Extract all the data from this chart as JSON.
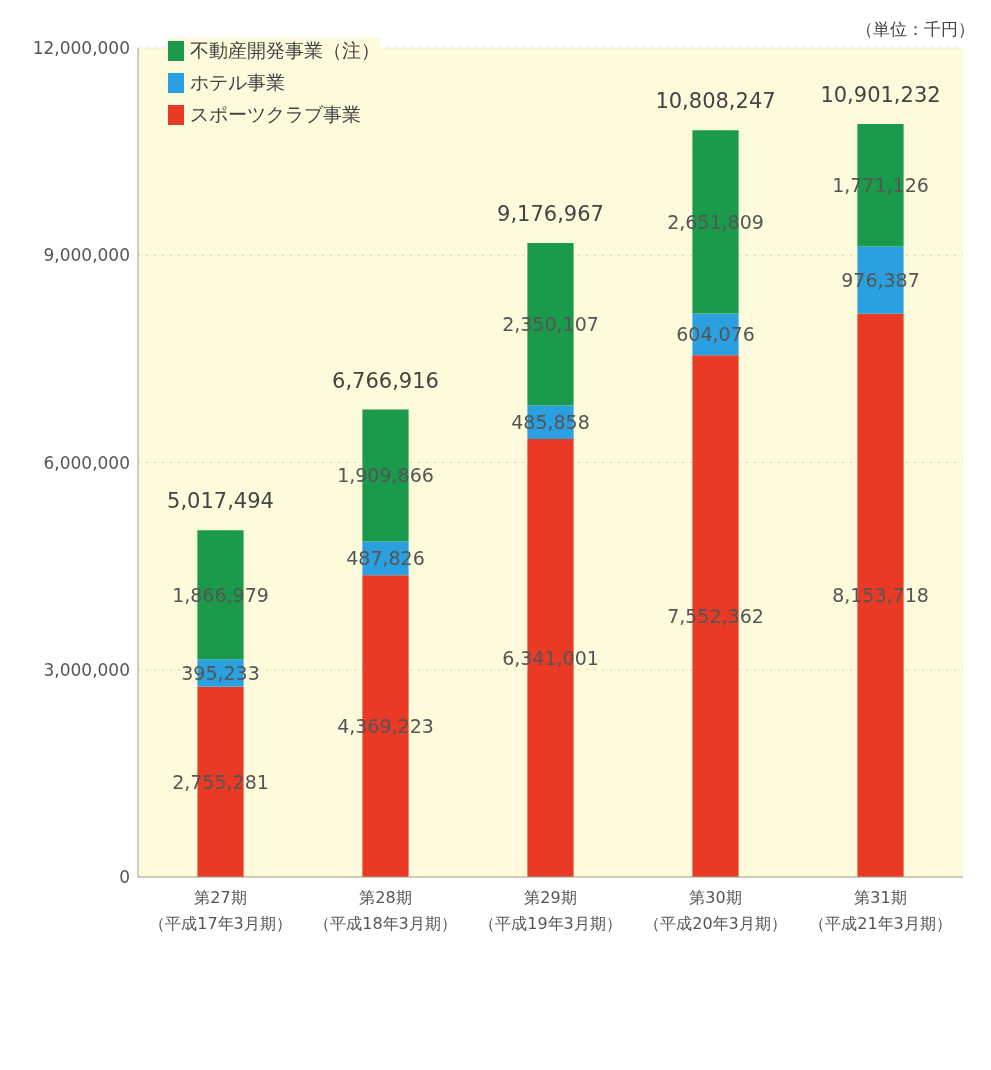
{
  "chart_data": {
    "type": "bar",
    "stacked": true,
    "categories": [
      "第27期（平成17年3月期）",
      "第28期（平成18年3月期）",
      "第29期（平成19年3月期）",
      "第30期（平成20年3月期）",
      "第31期（平成21年3月期）"
    ],
    "series": [
      {
        "name": "スポーツクラブ事業",
        "color": "#e83a25",
        "values": [
          2755281,
          4369223,
          6341001,
          7552362,
          8153718
        ],
        "value_labels": [
          "2,755,281",
          "4,369,223",
          "6,341,001",
          "7,552,362",
          "8,153,718"
        ]
      },
      {
        "name": "ホテル事業",
        "color": "#2aa0e0",
        "values": [
          395233,
          487826,
          485858,
          604076,
          976387
        ],
        "value_labels": [
          "395,233",
          "487,826",
          "485,858",
          "604,076",
          "976,387"
        ]
      },
      {
        "name": "不動産開発事業（注）",
        "color": "#1a9a4a",
        "values": [
          1866979,
          1909866,
          2350107,
          2651809,
          1771126
        ],
        "value_labels": [
          "1,866,979",
          "1,909,866",
          "2,350,107",
          "2,651,809",
          "1,771,126"
        ]
      }
    ],
    "totals": [
      "5,017,494",
      "6,766,916",
      "9,176,967",
      "10,808,247",
      "10,901,232"
    ],
    "ylim": [
      0,
      12000000
    ],
    "yticks": [
      0,
      {
        "value": 3000000,
        "label": "3,000,000"
      },
      {
        "value": 6000000,
        "label": "6,000,000"
      },
      {
        "value": 9000000,
        "label": "9,000,000"
      },
      {
        "value": 12000000,
        "label": "12,000,000"
      }
    ],
    "grid": "y",
    "legend": "top left",
    "annotations": [
      "（単位：千円）"
    ]
  }
}
